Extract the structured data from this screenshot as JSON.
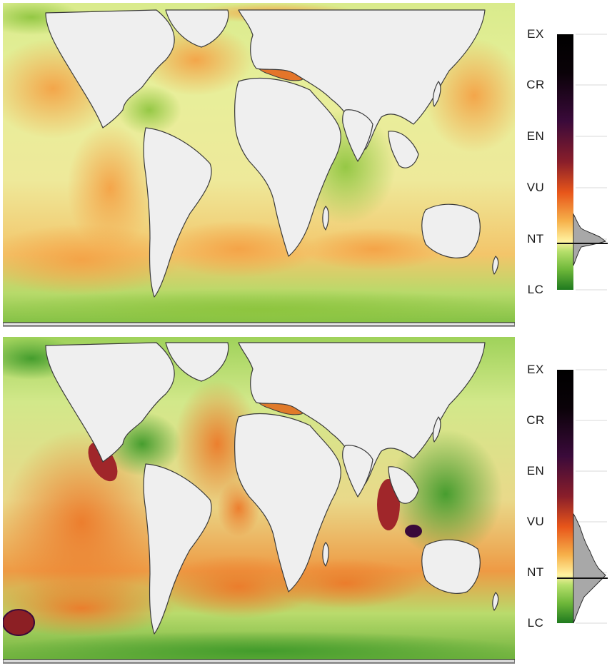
{
  "panels": [
    {
      "id": "top",
      "legend": {
        "labels": [
          "EX",
          "CR",
          "EN",
          "VU",
          "NT",
          "LC"
        ],
        "colors": {
          "LC": "#1f7a1f",
          "NT_low": "#b5df6a",
          "NT": "#fff2a0",
          "mid": "#f6b04a",
          "VU": "#e8561a",
          "EN": "#8a1e2a",
          "CR": "#3a0a3a",
          "EX": "#000000"
        }
      }
    },
    {
      "id": "bottom",
      "legend": {
        "labels": [
          "EX",
          "CR",
          "EN",
          "VU",
          "NT",
          "LC"
        ],
        "colors": {
          "LC": "#1f7a1f",
          "NT_low": "#b5df6a",
          "NT": "#fff2a0",
          "mid": "#f6b04a",
          "VU": "#e8561a",
          "EN": "#8a1e2a",
          "CR": "#3a0a3a",
          "EX": "#000000"
        }
      }
    }
  ],
  "colors": {
    "land": "#efefef",
    "coast": "#3a3a3a",
    "ocean_base": "#c8e27a",
    "ocean_green": "#8cc43c",
    "ocean_dark_green": "#3f9a2a",
    "ocean_orange": "#f6b04a",
    "ocean_deep_orange": "#ee8a2a",
    "ocean_red": "#c9452a",
    "ocean_dark_red": "#8c1f24",
    "histogram": "#a8a8a8"
  }
}
